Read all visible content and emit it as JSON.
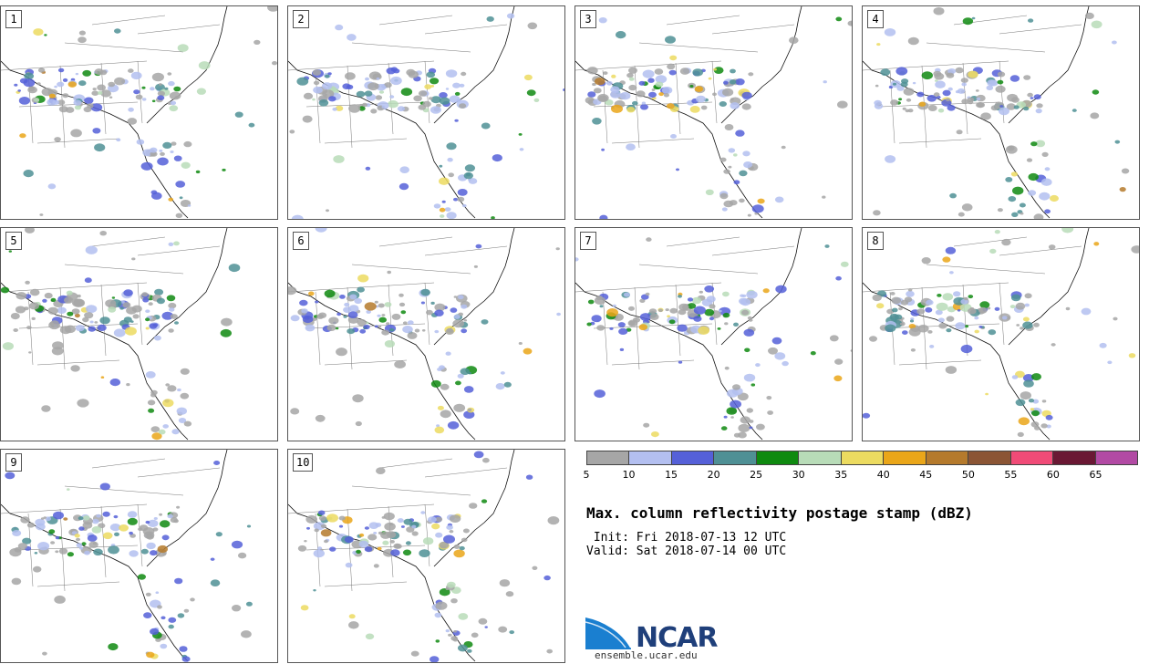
{
  "panels": [
    {
      "label": "1"
    },
    {
      "label": "2"
    },
    {
      "label": "3"
    },
    {
      "label": "4"
    },
    {
      "label": "5"
    },
    {
      "label": "6"
    },
    {
      "label": "7"
    },
    {
      "label": "8"
    },
    {
      "label": "9"
    },
    {
      "label": "10"
    }
  ],
  "colorbar": {
    "colors": [
      "#a6a6a6",
      "#b3bff0",
      "#5560d8",
      "#4f9095",
      "#0f8a10",
      "#b8dcb8",
      "#ecdb60",
      "#eaa619",
      "#b57a2c",
      "#8b5535",
      "#f04b77",
      "#6a1834",
      "#b24aa4"
    ],
    "ticks": [
      "5",
      "10",
      "15",
      "20",
      "25",
      "30",
      "35",
      "40",
      "45",
      "50",
      "55",
      "60",
      "65"
    ]
  },
  "title": "Max. column reflectivity postage stamp (dBZ)",
  "init": " Init: Fri 2018-07-13 12 UTC",
  "valid": "Valid: Sat 2018-07-14 00 UTC",
  "logo": {
    "text": "NCAR",
    "site": "ensemble.ucar.edu"
  }
}
